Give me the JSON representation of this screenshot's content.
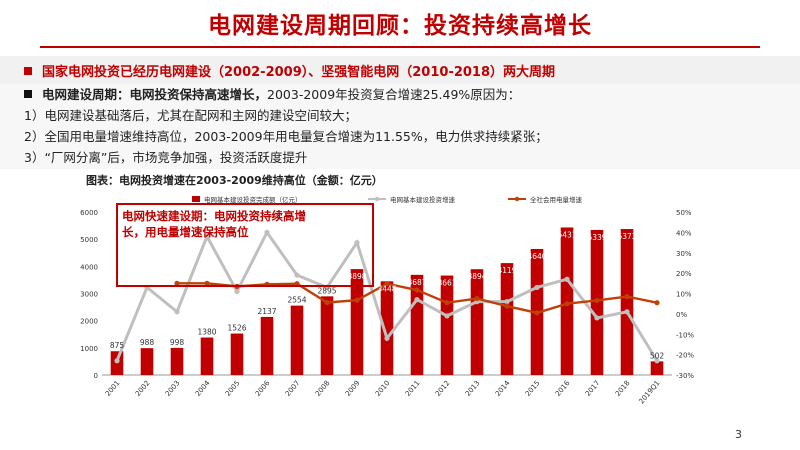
{
  "slide": {
    "title": "电网建设周期回顾：投资持续高增长",
    "subhead": "国家电网投资已经历电网建设（2002-2009）、坚强智能电网（2010-2018）两大周期",
    "point_label": "电网建设周期：电网投资保持高速增长，",
    "point_rest": "2003-2009年投资复合增速25.49%原因为：",
    "reasons": [
      "1）电网建设基础落后，尤其在配网和主网的建设空间较大；",
      "2）全国用电量增速维持高位，2003-2009年用电量复合增速为11.55%，电力供求持续紧张；",
      "3）“厂网分离”后，市场竞争加强，投资活跃度提升"
    ],
    "caption": "图表：电网投资增速在2003-2009维持高位（金额：亿元）",
    "annotation": [
      "电网快速建设期：电网投资持续高增",
      "长，用电量增速保持高位"
    ],
    "page_number": "3",
    "colors": {
      "accent": "#c00000",
      "gray_line": "#bfbfbf",
      "orange_line": "#c0400a"
    }
  },
  "chart_data": {
    "type": "bar",
    "categories": [
      "2001",
      "2002",
      "2003",
      "2004",
      "2005",
      "2006",
      "2007",
      "2008",
      "2009",
      "2010",
      "2011",
      "2012",
      "2013",
      "2014",
      "2015",
      "2016",
      "2017",
      "2018",
      "2019Q1"
    ],
    "series": [
      {
        "name": "电网基本建设投资完成额（亿元）",
        "type": "bar",
        "axis": "left",
        "values": [
          875,
          988,
          998,
          1380,
          1526,
          2137,
          2554,
          2895,
          3898,
          3448,
          3687,
          3661,
          3894,
          4119,
          4640,
          5431,
          5339,
          5373,
          502
        ]
      },
      {
        "name": "电网基本建设投资增速",
        "type": "line",
        "axis": "right",
        "color": "#bfbfbf",
        "values": [
          -23,
          13,
          1,
          38,
          11,
          40,
          19,
          13,
          35,
          -12,
          7,
          -1,
          6,
          6,
          13,
          17,
          -2,
          1,
          -23
        ]
      },
      {
        "name": "全社会用电量增速",
        "type": "line",
        "axis": "right",
        "color": "#c0400a",
        "values": [
          null,
          null,
          15,
          15,
          13.5,
          14.5,
          14.8,
          5.6,
          6.7,
          14.8,
          11.7,
          5.5,
          7.5,
          3.8,
          0.5,
          5,
          6.6,
          8.5,
          5.5
        ]
      }
    ],
    "y_left": {
      "min": 0,
      "max": 6000,
      "ticks": [
        0,
        1000,
        2000,
        3000,
        4000,
        5000,
        6000
      ]
    },
    "y_right": {
      "min": -30,
      "max": 50,
      "ticks": [
        "-30%",
        "-20%",
        "-10%",
        "0%",
        "10%",
        "20%",
        "30%",
        "40%",
        "50%"
      ]
    },
    "legend_placement": "top",
    "grid": false
  }
}
